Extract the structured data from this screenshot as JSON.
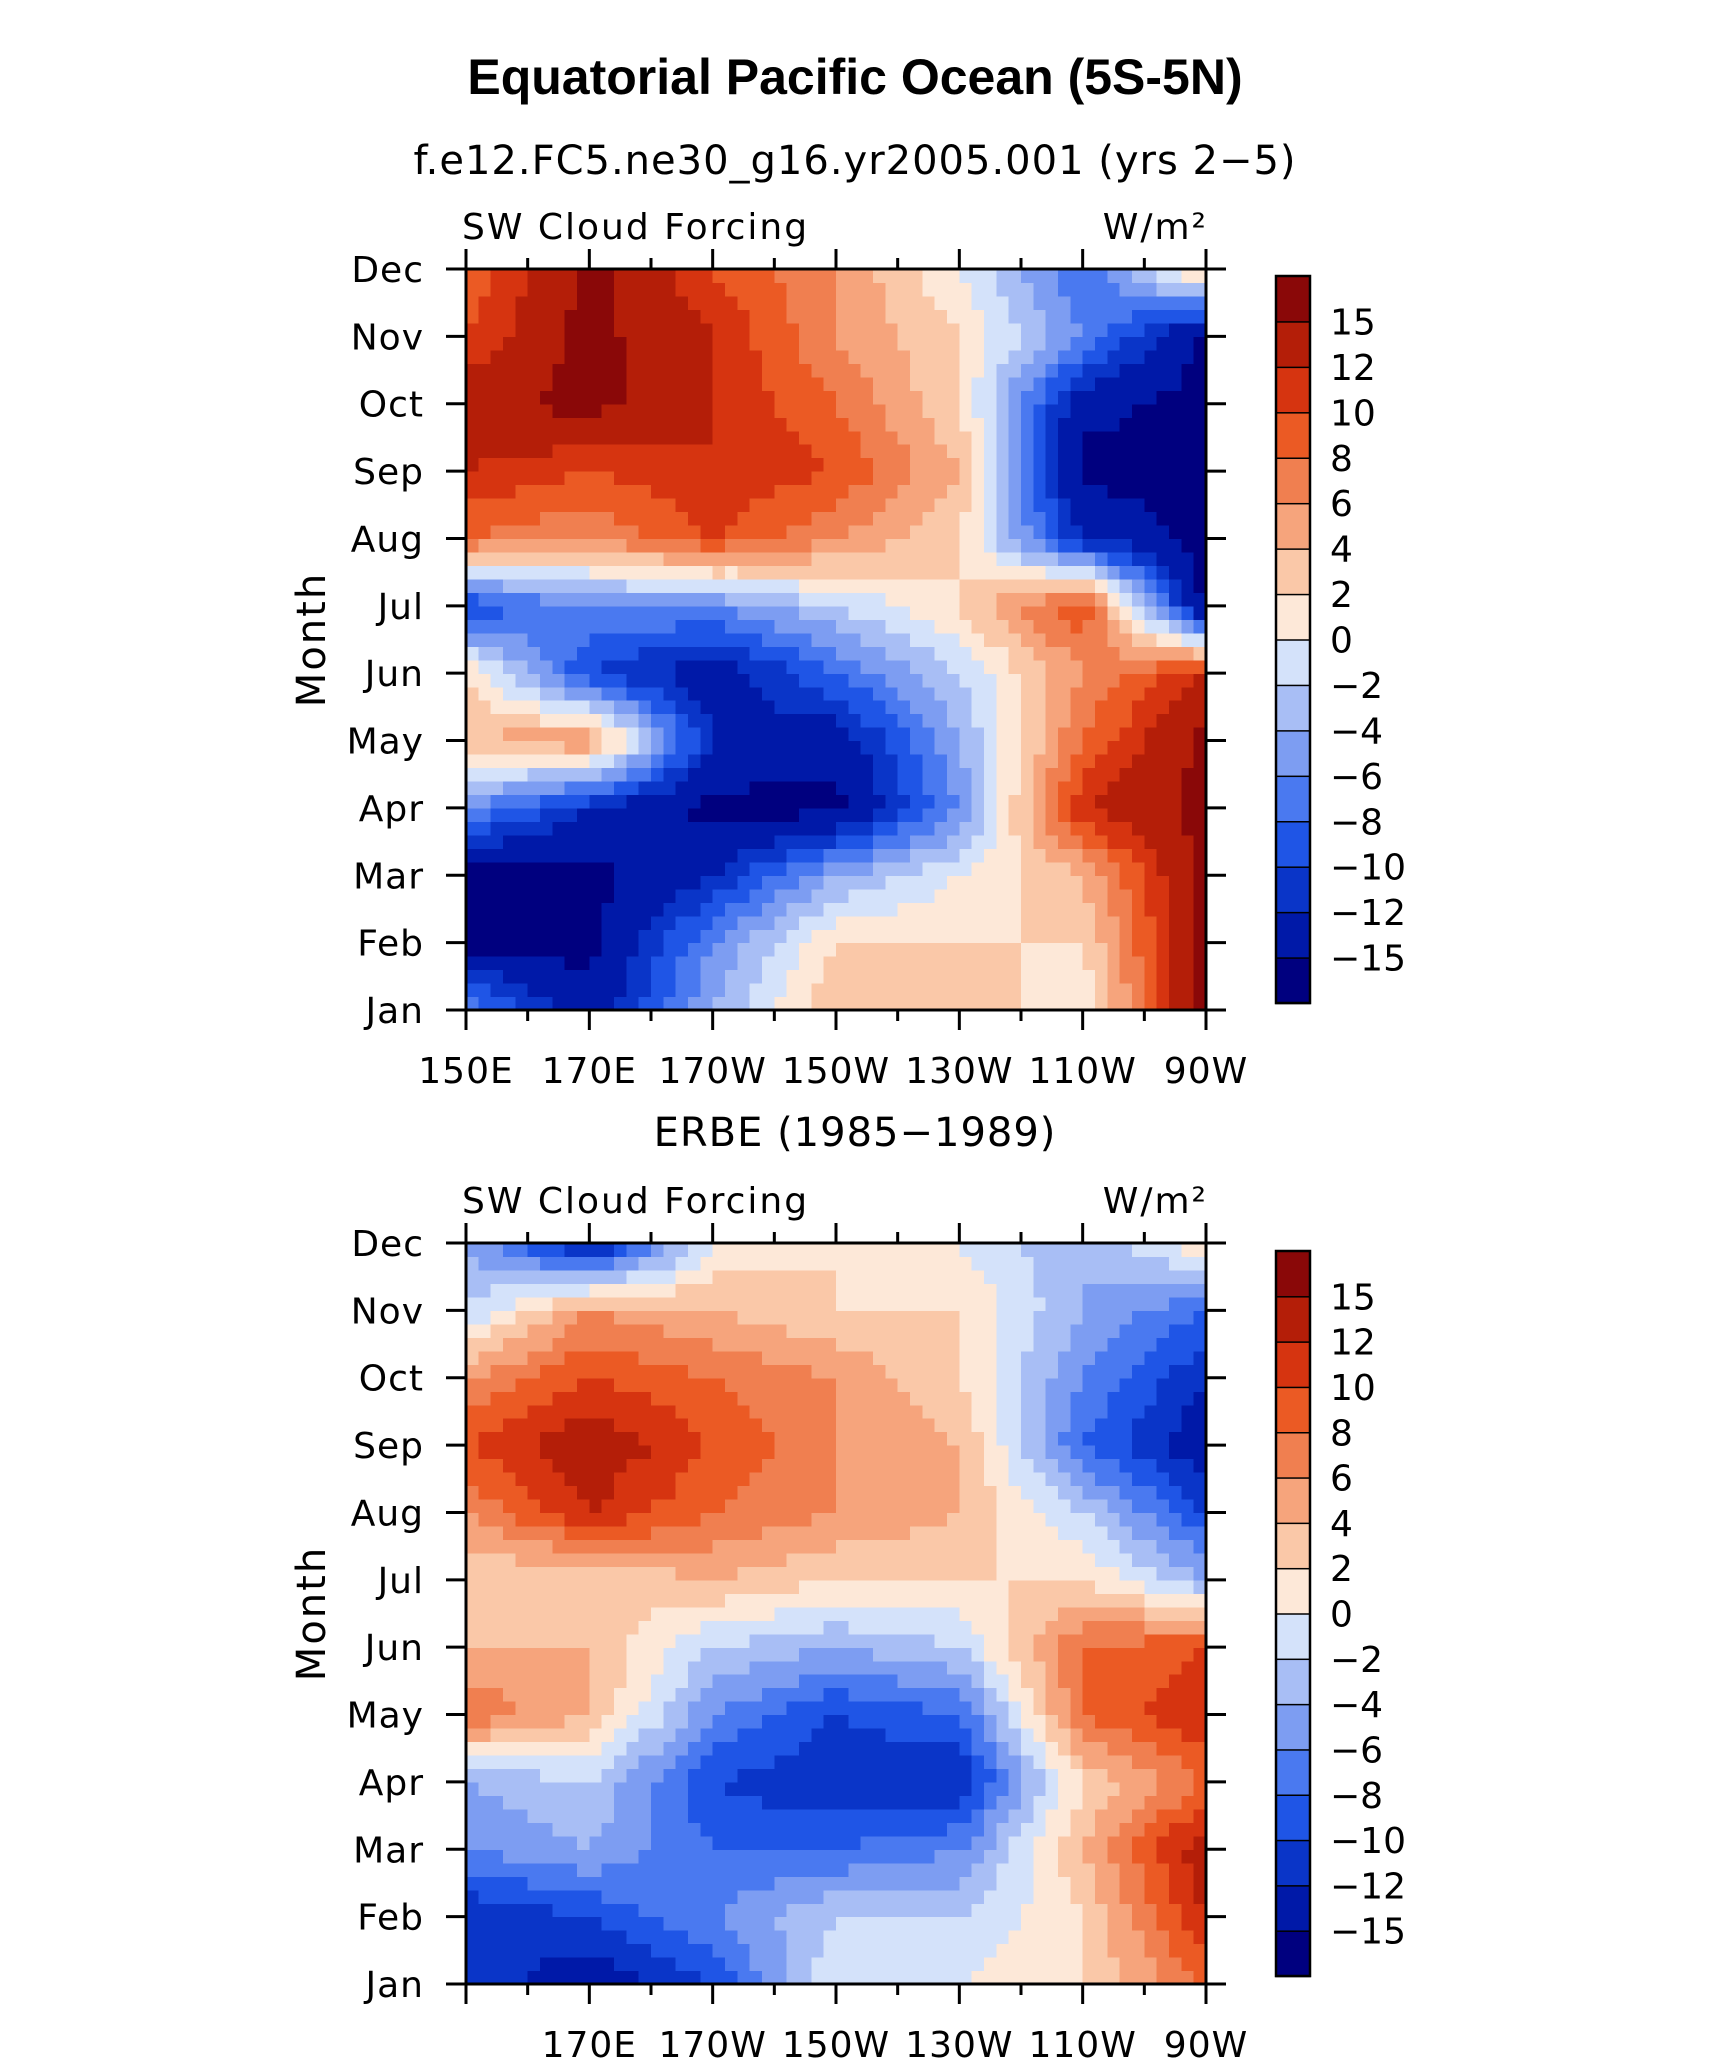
{
  "title": "Equatorial Pacific Ocean (5S-5N)",
  "colors": [
    "#00007f",
    "#0019a8",
    "#0a35c8",
    "#1f55e6",
    "#4a79f0",
    "#7d9df2",
    "#a8bef5",
    "#d4e2fa",
    "#fde8d8",
    "#fac8a8",
    "#f6a47c",
    "#f07f50",
    "#eb5a24",
    "#d63410",
    "#b41e08",
    "#8a0808"
  ],
  "chart_data": [
    {
      "type": "heatmap",
      "subtitle": "f.e12.FC5.ne30_g16.yr2005.001 (yrs 2−5)",
      "variable_label": "SW Cloud Forcing",
      "units_label": "W/m²",
      "ylabel": "Month",
      "yticks": [
        "Jan",
        "Feb",
        "Mar",
        "Apr",
        "May",
        "Jun",
        "Jul",
        "Aug",
        "Sep",
        "Oct",
        "Nov",
        "Dec"
      ],
      "xticks": [
        "150E",
        "170E",
        "170W",
        "150W",
        "130W",
        "110W",
        "90W"
      ],
      "xlim_lon": [
        150,
        270
      ],
      "colorbar_labels": [
        "15",
        "12",
        "10",
        "8",
        "6",
        "4",
        "2",
        "0",
        "−2",
        "−4",
        "−6",
        "−8",
        "−10",
        "−12",
        "−15"
      ],
      "contour_levels": [
        -15,
        -12,
        -10,
        -8,
        -6,
        -4,
        -2,
        0,
        2,
        4,
        6,
        8,
        10,
        12,
        15
      ],
      "lon": [
        150,
        170,
        190,
        210,
        230,
        250,
        270
      ],
      "months": [
        "Jan",
        "Feb",
        "Mar",
        "Apr",
        "May",
        "Jun",
        "Jul",
        "Aug",
        "Sep",
        "Oct",
        "Nov",
        "Dec"
      ],
      "values": [
        [
          -6,
          -14,
          -4,
          4,
          4,
          0,
          16
        ],
        [
          -16,
          -16,
          -6,
          2,
          2,
          2,
          16
        ],
        [
          -16,
          -16,
          -12,
          -4,
          0,
          4,
          16
        ],
        [
          -6,
          -12,
          -16,
          -16,
          -6,
          12,
          16
        ],
        [
          4,
          6,
          -12,
          -14,
          -4,
          8,
          16
        ],
        [
          2,
          -10,
          -14,
          -8,
          -2,
          6,
          12
        ],
        [
          -10,
          -6,
          -6,
          -2,
          2,
          10,
          -16
        ],
        [
          8,
          6,
          10,
          6,
          2,
          -12,
          -16
        ],
        [
          12,
          10,
          12,
          10,
          4,
          -16,
          -16
        ],
        [
          14,
          16,
          12,
          8,
          2,
          -14,
          -16
        ],
        [
          10,
          16,
          12,
          6,
          2,
          -6,
          -16
        ],
        [
          8,
          16,
          10,
          6,
          0,
          -8,
          4
        ]
      ]
    },
    {
      "type": "heatmap",
      "subtitle": "ERBE (1985−1989)",
      "variable_label": "SW Cloud Forcing",
      "units_label": "W/m²",
      "ylabel": "Month",
      "yticks": [
        "Jan",
        "Feb",
        "Mar",
        "Apr",
        "May",
        "Jun",
        "Jul",
        "Aug",
        "Sep",
        "Oct",
        "Nov",
        "Dec"
      ],
      "xticks": [
        "170E",
        "170W",
        "150W",
        "130W",
        "110W",
        "90W"
      ],
      "xlim_lon": [
        150,
        270
      ],
      "colorbar_labels": [
        "15",
        "12",
        "10",
        "8",
        "6",
        "4",
        "2",
        "0",
        "−2",
        "−4",
        "−6",
        "−8",
        "−10",
        "−12",
        "−15"
      ],
      "contour_levels": [
        -15,
        -12,
        -10,
        -8,
        -6,
        -4,
        -2,
        0,
        2,
        4,
        6,
        8,
        10,
        12,
        15
      ],
      "lon": [
        150,
        170,
        190,
        210,
        230,
        250,
        270
      ],
      "months": [
        "Jan",
        "Feb",
        "Mar",
        "Apr",
        "May",
        "Jun",
        "Jul",
        "Aug",
        "Sep",
        "Oct",
        "Nov",
        "Dec"
      ],
      "values": [
        [
          -10,
          -14,
          -10,
          0,
          0,
          2,
          8
        ],
        [
          -12,
          -10,
          -6,
          -2,
          -2,
          2,
          12
        ],
        [
          -6,
          -4,
          -8,
          -8,
          -6,
          4,
          14
        ],
        [
          -4,
          -2,
          -10,
          -12,
          -12,
          2,
          8
        ],
        [
          8,
          4,
          -6,
          -10,
          -8,
          8,
          12
        ],
        [
          4,
          4,
          -2,
          -4,
          -2,
          8,
          10
        ],
        [
          2,
          2,
          4,
          2,
          2,
          2,
          -4
        ],
        [
          6,
          12,
          8,
          6,
          4,
          -2,
          -10
        ],
        [
          10,
          14,
          10,
          6,
          4,
          -8,
          -14
        ],
        [
          6,
          10,
          8,
          6,
          2,
          -6,
          -12
        ],
        [
          -2,
          6,
          4,
          2,
          2,
          -4,
          -8
        ],
        [
          -4,
          -14,
          0,
          2,
          0,
          -4,
          2
        ]
      ]
    }
  ]
}
